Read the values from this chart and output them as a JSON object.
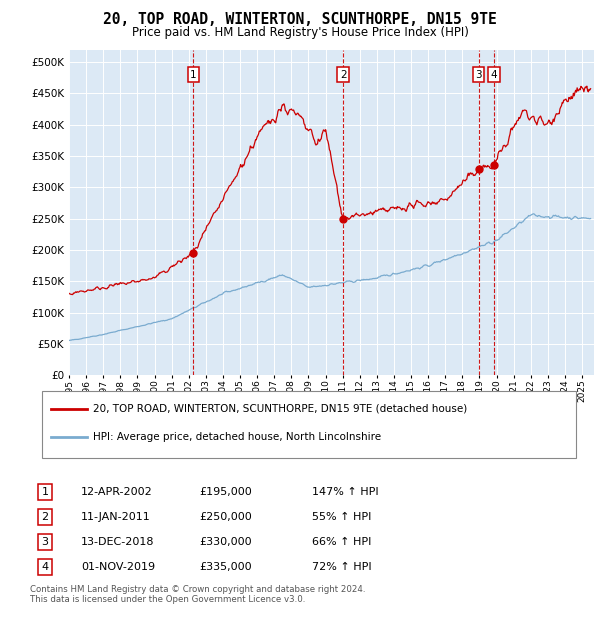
{
  "title": "20, TOP ROAD, WINTERTON, SCUNTHORPE, DN15 9TE",
  "subtitle": "Price paid vs. HM Land Registry's House Price Index (HPI)",
  "background_color": "#dce9f5",
  "ylim": [
    0,
    520000
  ],
  "yticks": [
    0,
    50000,
    100000,
    150000,
    200000,
    250000,
    300000,
    350000,
    400000,
    450000,
    500000
  ],
  "ytick_labels": [
    "£0",
    "£50K",
    "£100K",
    "£150K",
    "£200K",
    "£250K",
    "£300K",
    "£350K",
    "£400K",
    "£450K",
    "£500K"
  ],
  "sales": [
    {
      "label": "1",
      "date_num": 2002.28,
      "price": 195000
    },
    {
      "label": "2",
      "date_num": 2011.03,
      "price": 250000
    },
    {
      "label": "3",
      "date_num": 2018.95,
      "price": 330000
    },
    {
      "label": "4",
      "date_num": 2019.84,
      "price": 335000
    }
  ],
  "legend_line1": "20, TOP ROAD, WINTERTON, SCUNTHORPE, DN15 9TE (detached house)",
  "legend_line2": "HPI: Average price, detached house, North Lincolnshire",
  "table": [
    {
      "num": "1",
      "date": "12-APR-2002",
      "price": "£195,000",
      "hpi": "147% ↑ HPI"
    },
    {
      "num": "2",
      "date": "11-JAN-2011",
      "price": "£250,000",
      "hpi": "55% ↑ HPI"
    },
    {
      "num": "3",
      "date": "13-DEC-2018",
      "price": "£330,000",
      "hpi": "66% ↑ HPI"
    },
    {
      "num": "4",
      "date": "01-NOV-2019",
      "price": "£335,000",
      "hpi": "72% ↑ HPI"
    }
  ],
  "footer": "Contains HM Land Registry data © Crown copyright and database right 2024.\nThis data is licensed under the Open Government Licence v3.0.",
  "red_color": "#cc0000",
  "blue_color": "#7aabcf",
  "xlim_start": 1995.0,
  "xlim_end": 2025.7
}
